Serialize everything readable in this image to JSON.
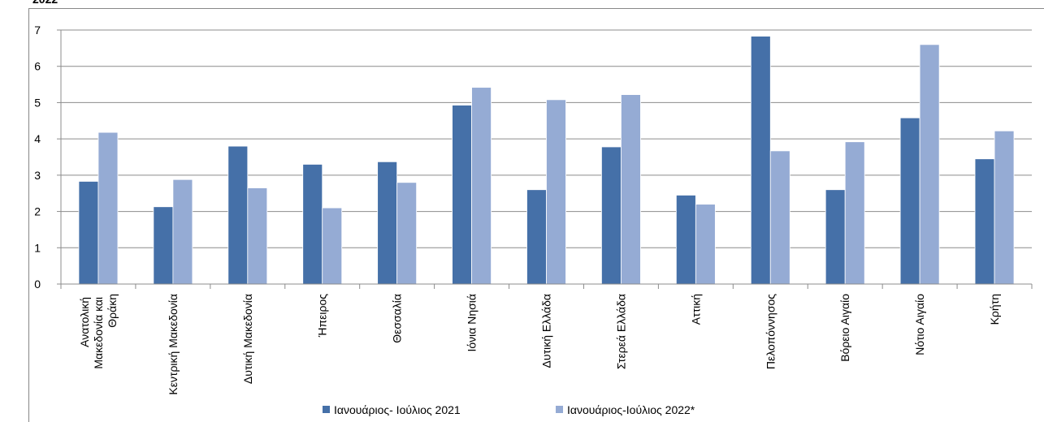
{
  "chart_data": {
    "type": "bar",
    "title": "2022",
    "categories": [
      "Ανατολική Μακεδονία και Θράκη",
      "Κεντρική Μακεδονία",
      "Δυτική Μακεδονία",
      "Ήπειρος",
      "Θεσσαλία",
      "Ιόνια Νησιά",
      "Δυτική Ελλάδα",
      "Στερεά Ελλάδα",
      "Αττική",
      "Πελοπόννησος",
      "Βόρειο Αιγαίο",
      "Νότιο Αιγαίο",
      "Κρήτη"
    ],
    "series": [
      {
        "name": "Ιανουάριος- Ιούλιος 2021",
        "color": "#4570a8",
        "values": [
          2.83,
          2.13,
          3.8,
          3.3,
          3.37,
          4.93,
          2.6,
          3.78,
          2.45,
          6.83,
          2.6,
          4.58,
          3.45
        ]
      },
      {
        "name": "Ιανουάριος-Ιούλιος 2022*",
        "color": "#95abd4",
        "values": [
          4.18,
          2.88,
          2.65,
          2.1,
          2.8,
          5.42,
          5.08,
          5.22,
          2.2,
          3.67,
          3.92,
          6.6,
          4.22
        ]
      }
    ],
    "ylim": [
      0,
      7
    ],
    "yticks": [
      0,
      1,
      2,
      3,
      4,
      5,
      6,
      7
    ],
    "grid": true,
    "legend": "bottom"
  }
}
